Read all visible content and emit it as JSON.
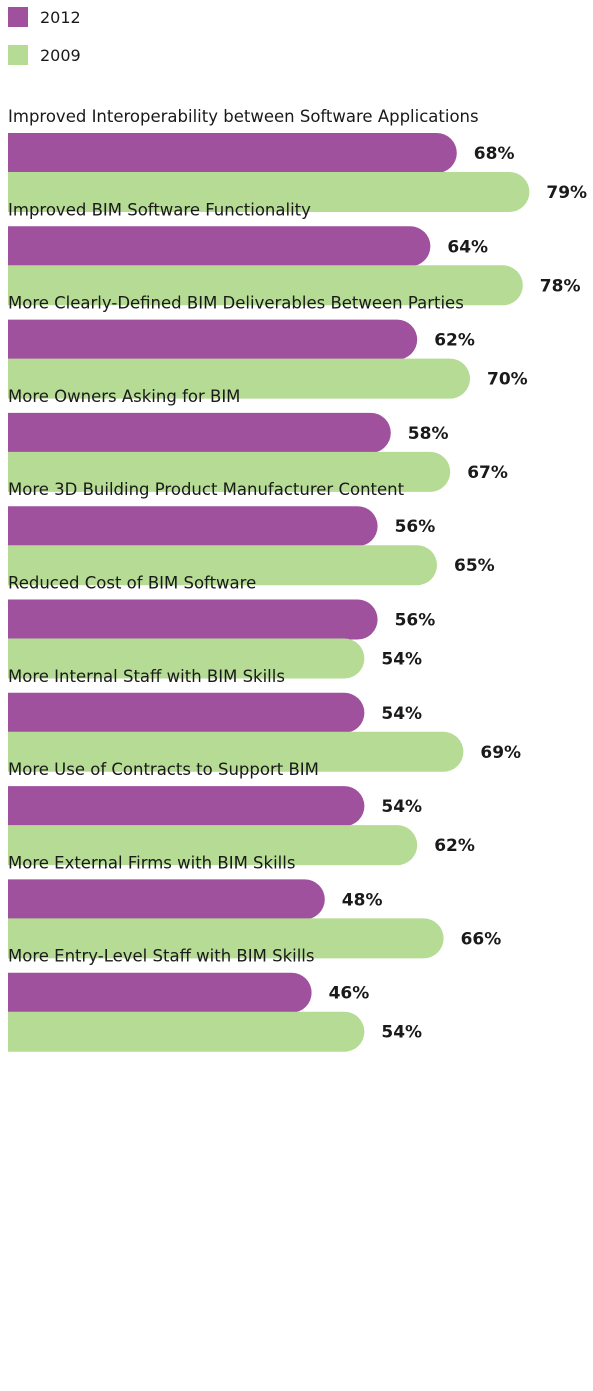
{
  "chart_data": {
    "type": "bar",
    "orientation": "horizontal",
    "categories": [
      "Improved Interoperability between Software Applications",
      "Improved BIM Software Functionality",
      "More Clearly-Defined BIM Deliverables Between Parties",
      "More Owners Asking for BIM",
      "More 3D Building Product Manufacturer Content",
      "Reduced Cost of BIM Software",
      "More Internal Staff with BIM Skills",
      "More Use of Contracts to Support BIM",
      "More External Firms with BIM Skills",
      "More Entry-Level Staff with BIM Skills"
    ],
    "series": [
      {
        "name": "2012",
        "color": "#a0519e",
        "values": [
          68,
          64,
          62,
          58,
          56,
          56,
          54,
          54,
          48,
          46
        ]
      },
      {
        "name": "2009",
        "color": "#b5db95",
        "values": [
          79,
          78,
          70,
          67,
          65,
          54,
          69,
          62,
          66,
          54
        ]
      }
    ],
    "value_suffix": "%",
    "legend_position": "top-left",
    "xlim": [
      0,
      100
    ],
    "grid": false
  }
}
